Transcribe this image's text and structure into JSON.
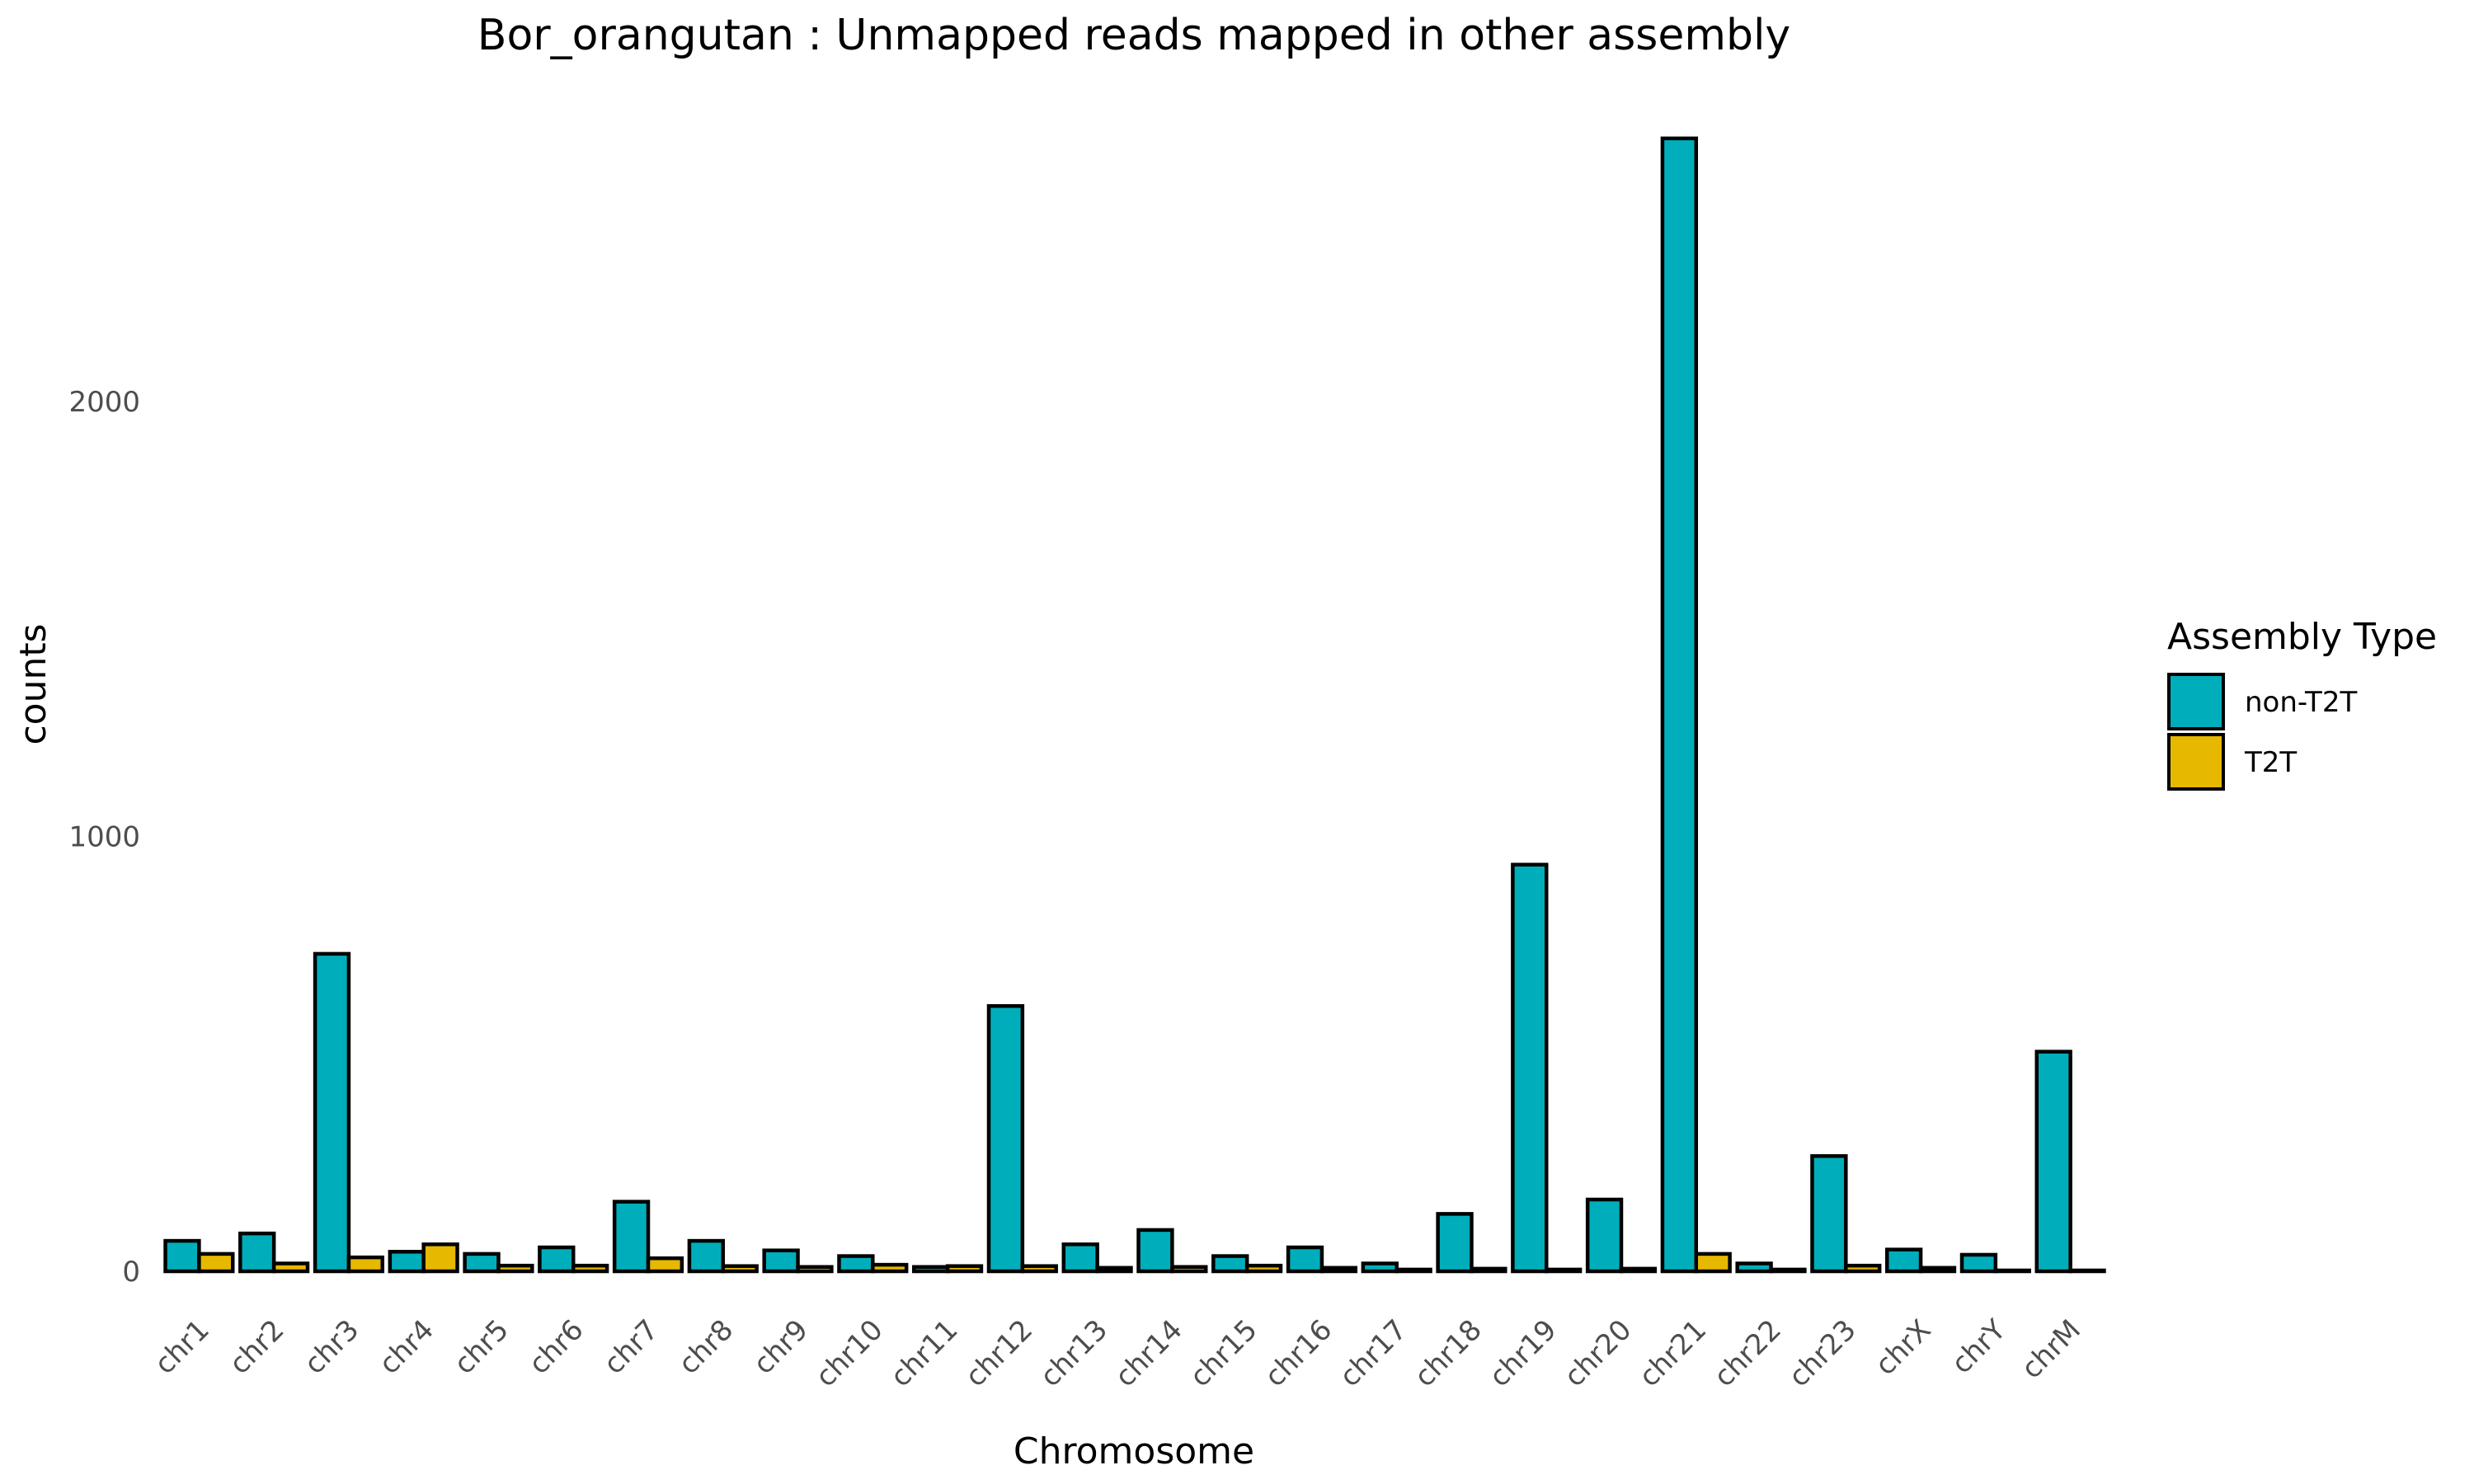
{
  "chart_data": {
    "type": "bar",
    "title": "Bor_orangutan : Unmapped reads mapped in other assembly",
    "xlabel": "Chromosome",
    "ylabel": "counts",
    "ylim": [
      0,
      2600
    ],
    "yticks": [
      0,
      1000,
      2000
    ],
    "grid": false,
    "categories": [
      "chr1",
      "chr2",
      "chr3",
      "chr4",
      "chr5",
      "chr6",
      "chr7",
      "chr8",
      "chr9",
      "chr10",
      "chr11",
      "chr12",
      "chr13",
      "chr14",
      "chr15",
      "chr16",
      "chr17",
      "chr18",
      "chr19",
      "chr20",
      "chr21",
      "chr22",
      "chr23",
      "chrX",
      "chrY",
      "chrM"
    ],
    "series": [
      {
        "name": "non-T2T",
        "color": "#00AEBB",
        "values": [
          70,
          87,
          730,
          45,
          40,
          55,
          160,
          70,
          48,
          35,
          10,
          610,
          62,
          95,
          35,
          55,
          18,
          132,
          935,
          165,
          2605,
          18,
          265,
          50,
          38,
          505
        ]
      },
      {
        "name": "T2T",
        "color": "#E7B800",
        "values": [
          40,
          18,
          32,
          62,
          13,
          13,
          30,
          12,
          10,
          15,
          12,
          12,
          8,
          10,
          13,
          8,
          4,
          6,
          4,
          6,
          40,
          4,
          13,
          8,
          2,
          2
        ]
      }
    ],
    "legend": {
      "title": "Assembly Type",
      "position": "right"
    }
  }
}
